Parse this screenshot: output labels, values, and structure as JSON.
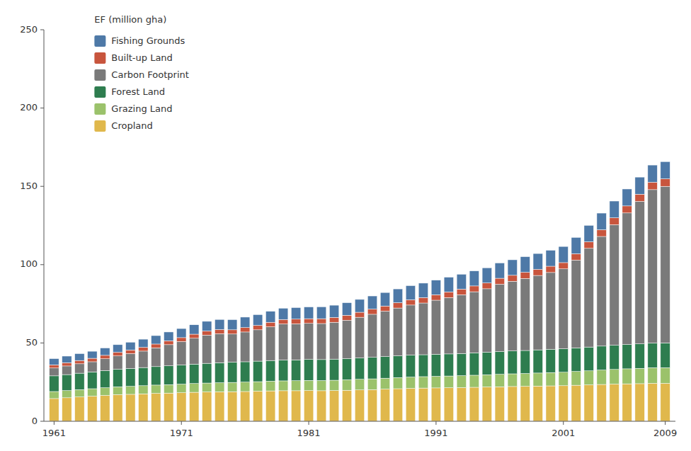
{
  "chart_data": {
    "type": "bar",
    "stacked": true,
    "ylabel": "EF (million gha)",
    "x": [
      1961,
      1962,
      1963,
      1964,
      1965,
      1966,
      1967,
      1968,
      1969,
      1970,
      1971,
      1972,
      1973,
      1974,
      1975,
      1976,
      1977,
      1978,
      1979,
      1980,
      1981,
      1982,
      1983,
      1984,
      1985,
      1986,
      1987,
      1988,
      1989,
      1990,
      1991,
      1992,
      1993,
      1994,
      1995,
      1996,
      1997,
      1998,
      1999,
      2000,
      2001,
      2002,
      2003,
      2004,
      2005,
      2006,
      2007,
      2008,
      2009
    ],
    "series": [
      {
        "name": "Cropland",
        "color": "#e0b84c",
        "values": [
          14.5,
          15.0,
          15.5,
          16.0,
          16.5,
          17.0,
          17.2,
          17.5,
          17.8,
          18.0,
          18.2,
          18.5,
          18.7,
          18.8,
          18.9,
          19.0,
          19.2,
          19.4,
          19.5,
          19.5,
          19.6,
          19.5,
          19.6,
          19.8,
          20.0,
          20.2,
          20.5,
          20.8,
          21.0,
          21.2,
          21.3,
          21.4,
          21.5,
          21.7,
          21.9,
          22.0,
          22.2,
          22.3,
          22.5,
          22.6,
          22.7,
          23.0,
          23.2,
          23.5,
          23.7,
          23.9,
          24.0,
          24.2,
          24.2
        ]
      },
      {
        "name": "Grazing Land",
        "color": "#9bc26b",
        "values": [
          4.5,
          4.6,
          4.7,
          4.8,
          4.9,
          5.0,
          5.1,
          5.2,
          5.3,
          5.4,
          5.5,
          5.6,
          5.7,
          5.8,
          5.9,
          6.0,
          6.1,
          6.2,
          6.3,
          6.4,
          6.5,
          6.5,
          6.6,
          6.7,
          6.8,
          6.9,
          7.0,
          7.1,
          7.2,
          7.3,
          7.4,
          7.5,
          7.6,
          7.7,
          7.8,
          8.0,
          8.1,
          8.2,
          8.3,
          8.5,
          8.6,
          8.8,
          9.0,
          9.2,
          9.4,
          9.6,
          9.8,
          10.0,
          10.0
        ]
      },
      {
        "name": "Forest Land",
        "color": "#2e7d4f",
        "values": [
          10.0,
          10.2,
          10.5,
          10.7,
          11.0,
          11.2,
          11.4,
          11.6,
          11.8,
          12.0,
          12.2,
          12.4,
          12.6,
          12.8,
          12.9,
          13.0,
          13.1,
          13.2,
          13.3,
          13.3,
          13.4,
          13.4,
          13.5,
          13.5,
          13.6,
          13.7,
          13.8,
          13.9,
          14.0,
          14.0,
          14.1,
          14.1,
          14.2,
          14.3,
          14.4,
          14.5,
          14.6,
          14.7,
          14.8,
          14.9,
          15.0,
          15.1,
          15.2,
          15.3,
          15.4,
          15.5,
          15.6,
          15.7,
          15.8
        ]
      },
      {
        "name": "Carbon Footprint",
        "color": "#7a7a7a",
        "values": [
          5.0,
          5.5,
          6.0,
          6.5,
          7.5,
          8.5,
          9.5,
          10.5,
          12.0,
          13.5,
          15.0,
          16.5,
          18.0,
          18.5,
          18.0,
          19.0,
          20.0,
          21.5,
          23.0,
          23.0,
          23.0,
          23.0,
          23.5,
          24.5,
          26.0,
          27.5,
          29.0,
          30.5,
          32.0,
          33.0,
          34.5,
          36.0,
          37.5,
          39.0,
          40.5,
          43.0,
          44.5,
          46.0,
          47.5,
          49.0,
          51.0,
          56.0,
          63.0,
          70.0,
          77.0,
          84.0,
          91.0,
          98.0,
          100.0
        ]
      },
      {
        "name": "Built-up Land",
        "color": "#c8553d",
        "values": [
          2.0,
          2.1,
          2.1,
          2.2,
          2.2,
          2.3,
          2.3,
          2.4,
          2.4,
          2.5,
          2.5,
          2.6,
          2.6,
          2.7,
          2.7,
          2.8,
          2.8,
          2.9,
          2.9,
          3.0,
          3.0,
          3.1,
          3.1,
          3.2,
          3.2,
          3.3,
          3.3,
          3.4,
          3.4,
          3.5,
          3.5,
          3.6,
          3.6,
          3.7,
          3.7,
          3.8,
          3.8,
          3.9,
          3.9,
          4.0,
          4.0,
          4.1,
          4.2,
          4.3,
          4.4,
          4.5,
          4.6,
          4.7,
          4.8
        ]
      },
      {
        "name": "Fishing Grounds",
        "color": "#4e79a7",
        "values": [
          4.0,
          4.2,
          4.4,
          4.5,
          4.7,
          4.9,
          5.0,
          5.2,
          5.4,
          5.6,
          5.8,
          6.0,
          6.2,
          6.4,
          6.5,
          6.7,
          6.9,
          7.0,
          7.2,
          7.4,
          7.5,
          7.6,
          7.8,
          8.0,
          8.2,
          8.4,
          8.6,
          8.8,
          9.0,
          9.2,
          9.3,
          9.4,
          9.5,
          9.6,
          9.7,
          9.8,
          9.9,
          10.0,
          10.1,
          10.2,
          10.3,
          10.4,
          10.5,
          10.6,
          10.7,
          10.8,
          10.9,
          11.0,
          11.0
        ]
      }
    ],
    "xlim": [
      1960.2,
      2009.8
    ],
    "xticks": [
      1961,
      1971,
      1981,
      1991,
      2001,
      2009
    ],
    "ylim": [
      0,
      250
    ],
    "yticks": [
      0,
      50,
      100,
      150,
      200,
      250
    ],
    "grid": false,
    "legend": "upper-left"
  }
}
